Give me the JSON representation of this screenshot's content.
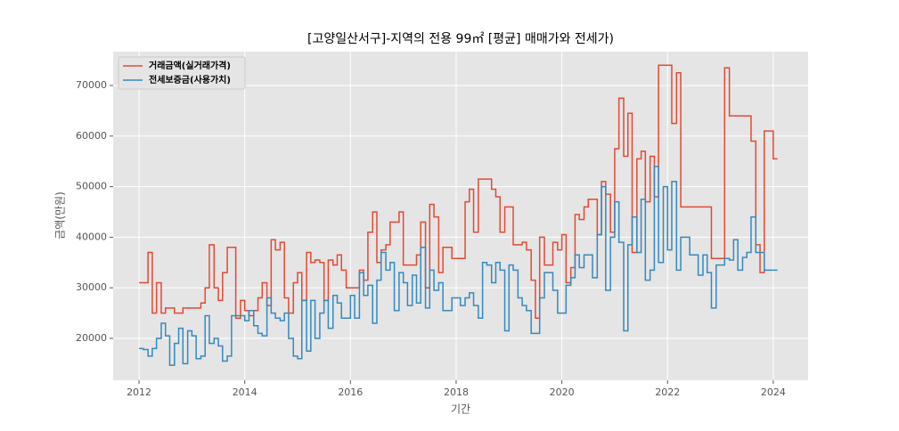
{
  "chart_data": {
    "type": "step",
    "title": "[고양일산서구]-지역의 전용 99㎡ [평균] 매매가와 전세가)",
    "xlabel": "기간",
    "ylabel": "금액(만원)",
    "xlim": [
      2011.51,
      2024.66
    ],
    "xticks": [
      2012,
      2014,
      2016,
      2018,
      2020,
      2022,
      2024
    ],
    "ylim": [
      11725,
      76690
    ],
    "yticks": [
      20000,
      30000,
      40000,
      50000,
      60000,
      70000
    ],
    "grid": true,
    "legend": "upper left",
    "series": [
      {
        "name": "거래금액(실거래가격)",
        "color": "#E24A33",
        "x": [
          2012.0,
          2012.17,
          2012.25,
          2012.33,
          2012.42,
          2012.5,
          2012.67,
          2012.83,
          2013.17,
          2013.25,
          2013.33,
          2013.42,
          2013.5,
          2013.58,
          2013.67,
          2013.83,
          2013.92,
          2014.0,
          2014.08,
          2014.17,
          2014.25,
          2014.33,
          2014.42,
          2014.5,
          2014.58,
          2014.67,
          2014.75,
          2014.83,
          2014.92,
          2015.0,
          2015.08,
          2015.17,
          2015.25,
          2015.33,
          2015.42,
          2015.5,
          2015.58,
          2015.67,
          2015.75,
          2015.83,
          2015.92,
          2016.17,
          2016.25,
          2016.33,
          2016.42,
          2016.5,
          2016.58,
          2016.67,
          2016.75,
          2016.92,
          2017.0,
          2017.25,
          2017.33,
          2017.42,
          2017.5,
          2017.58,
          2017.67,
          2017.75,
          2017.92,
          2018.08,
          2018.17,
          2018.25,
          2018.33,
          2018.42,
          2018.58,
          2018.67,
          2018.75,
          2018.83,
          2018.92,
          2019.08,
          2019.25,
          2019.33,
          2019.42,
          2019.5,
          2019.58,
          2019.67,
          2019.83,
          2019.92,
          2020.0,
          2020.08,
          2020.17,
          2020.25,
          2020.33,
          2020.42,
          2020.5,
          2020.67,
          2020.75,
          2020.83,
          2020.92,
          2021.0,
          2021.08,
          2021.17,
          2021.25,
          2021.33,
          2021.42,
          2021.5,
          2021.58,
          2021.67,
          2021.75,
          2021.83,
          2022.08,
          2022.17,
          2022.25,
          2022.67,
          2022.83,
          2023.0,
          2023.08,
          2023.17,
          2023.58,
          2023.67,
          2023.75,
          2023.83,
          2024.0,
          2024.08
        ],
        "values": [
          31000,
          37000,
          25000,
          31000,
          25000,
          26000,
          25000,
          26000,
          27000,
          30000,
          38500,
          30000,
          27500,
          33000,
          38000,
          24000,
          27500,
          25500,
          24500,
          25500,
          28000,
          31000,
          26500,
          39500,
          37500,
          39000,
          28000,
          25000,
          31000,
          33000,
          27500,
          37000,
          35000,
          35500,
          35000,
          27500,
          35500,
          34500,
          36500,
          33500,
          30000,
          33500,
          31500,
          41000,
          45000,
          35000,
          37500,
          38500,
          43000,
          45000,
          34500,
          36500,
          43000,
          30000,
          46500,
          44000,
          33000,
          38000,
          35800,
          35800,
          47000,
          49500,
          41000,
          51500,
          51500,
          49500,
          48000,
          41000,
          46000,
          38500,
          39000,
          37500,
          31500,
          24000,
          40000,
          34500,
          39000,
          37500,
          40500,
          31000,
          34000,
          44500,
          43500,
          46000,
          47500,
          40500,
          51000,
          48500,
          41000,
          57500,
          67500,
          56000,
          64500,
          37000,
          55500,
          57000,
          47000,
          56000,
          48000,
          74000,
          62500,
          72500,
          46000,
          46000,
          35800,
          35800,
          73500,
          64000,
          59000,
          38500,
          33000,
          61000,
          55500,
          55500
        ]
      },
      {
        "name": "전세보증금(사용가치)",
        "color": "#348ABD",
        "x": [
          2012.0,
          2012.08,
          2012.17,
          2012.25,
          2012.33,
          2012.42,
          2012.5,
          2012.58,
          2012.67,
          2012.75,
          2012.83,
          2012.92,
          2013.0,
          2013.08,
          2013.17,
          2013.25,
          2013.33,
          2013.42,
          2013.5,
          2013.58,
          2013.67,
          2013.75,
          2013.92,
          2014.0,
          2014.08,
          2014.17,
          2014.25,
          2014.33,
          2014.42,
          2014.5,
          2014.58,
          2014.67,
          2014.75,
          2014.83,
          2014.92,
          2015.0,
          2015.08,
          2015.17,
          2015.25,
          2015.33,
          2015.42,
          2015.5,
          2015.58,
          2015.67,
          2015.75,
          2015.83,
          2016.0,
          2016.08,
          2016.17,
          2016.25,
          2016.33,
          2016.42,
          2016.5,
          2016.58,
          2016.67,
          2016.75,
          2016.83,
          2016.92,
          2017.0,
          2017.08,
          2017.17,
          2017.25,
          2017.33,
          2017.42,
          2017.5,
          2017.58,
          2017.67,
          2017.75,
          2017.92,
          2018.08,
          2018.17,
          2018.25,
          2018.33,
          2018.42,
          2018.5,
          2018.58,
          2018.67,
          2018.75,
          2018.83,
          2018.92,
          2019.0,
          2019.08,
          2019.17,
          2019.25,
          2019.33,
          2019.42,
          2019.58,
          2019.67,
          2019.83,
          2019.92,
          2020.08,
          2020.17,
          2020.25,
          2020.33,
          2020.42,
          2020.58,
          2020.67,
          2020.75,
          2020.83,
          2020.92,
          2021.0,
          2021.08,
          2021.17,
          2021.25,
          2021.33,
          2021.42,
          2021.5,
          2021.58,
          2021.67,
          2021.75,
          2021.83,
          2021.92,
          2022.0,
          2022.08,
          2022.17,
          2022.25,
          2022.42,
          2022.58,
          2022.67,
          2022.75,
          2022.83,
          2022.92,
          2023.08,
          2023.17,
          2023.25,
          2023.33,
          2023.42,
          2023.5,
          2023.58,
          2023.67,
          2023.83,
          2024.08
        ],
        "values": [
          18000,
          17800,
          16500,
          18000,
          20000,
          23000,
          20500,
          14700,
          19000,
          22000,
          15000,
          21500,
          20500,
          16000,
          16500,
          24500,
          19000,
          20000,
          18500,
          15500,
          16500,
          24500,
          24500,
          23500,
          25500,
          22500,
          21000,
          20500,
          28000,
          25000,
          24000,
          23500,
          25000,
          20000,
          16500,
          16000,
          27500,
          17500,
          27500,
          20000,
          25000,
          27500,
          22000,
          28500,
          27000,
          24000,
          28500,
          24000,
          33000,
          28500,
          30500,
          23000,
          31500,
          37000,
          33500,
          35000,
          25500,
          33000,
          31000,
          26500,
          32500,
          27000,
          38000,
          26000,
          33500,
          29500,
          31000,
          25500,
          28000,
          26500,
          28000,
          29000,
          26500,
          24000,
          35000,
          34500,
          31000,
          35000,
          33500,
          21500,
          34500,
          33500,
          28000,
          26500,
          25500,
          21000,
          28000,
          33000,
          29500,
          25000,
          30500,
          32000,
          36500,
          34000,
          36500,
          32000,
          40500,
          50000,
          29500,
          40000,
          47000,
          39000,
          21500,
          38500,
          44000,
          37000,
          47500,
          31500,
          33500,
          54000,
          35000,
          50000,
          37500,
          51000,
          33500,
          40000,
          36500,
          32500,
          36500,
          33000,
          26000,
          34500,
          35800,
          35500,
          39500,
          33500,
          36000,
          37000,
          44000,
          37000,
          33500,
          33500
        ]
      }
    ]
  }
}
